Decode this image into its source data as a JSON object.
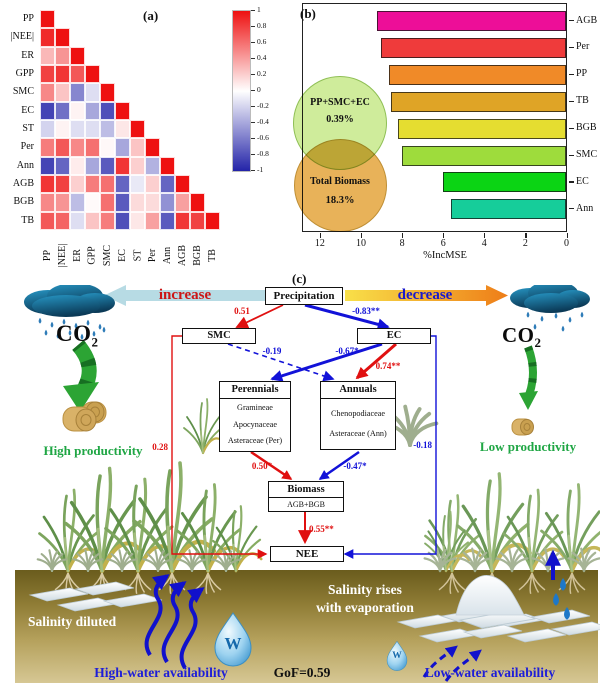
{
  "figure": {
    "panel_a_label": "(a)",
    "panel_b_label": "(b)",
    "panel_c_label": "(c)"
  },
  "chart_data": [
    {
      "type": "heatmap",
      "panel": "a",
      "title": "Correlation matrix (lower triangle)",
      "labels": [
        "PP",
        "|NEE|",
        "ER",
        "GPP",
        "SMC",
        "EC",
        "ST",
        "Per",
        "Ann",
        "AGB",
        "BGB",
        "TB"
      ],
      "triangle": "lower",
      "positive_color": "#ee1111",
      "negative_color": "#2323a8",
      "colorbar_ticks": [
        "1",
        "0.8",
        "0.6",
        "0.4",
        "0.2",
        "0",
        "-0.2",
        "-0.4",
        "-0.6",
        "-0.8",
        "-1"
      ],
      "values": [
        [
          1
        ],
        [
          0.9,
          1
        ],
        [
          0.3,
          0.45,
          1
        ],
        [
          0.8,
          0.85,
          0.7,
          1
        ],
        [
          0.5,
          0.25,
          -0.55,
          -0.15,
          1
        ],
        [
          -0.85,
          -0.65,
          0.05,
          -0.4,
          -0.8,
          1
        ],
        [
          -0.2,
          0.05,
          -0.15,
          -0.15,
          -0.3,
          0.1,
          1
        ],
        [
          0.55,
          0.7,
          0.5,
          0.6,
          0.03,
          -0.4,
          0.25,
          1
        ],
        [
          -0.85,
          -0.7,
          0.08,
          -0.4,
          -0.75,
          0.85,
          0.2,
          -0.35,
          1
        ],
        [
          0.85,
          0.8,
          0.2,
          0.55,
          0.6,
          -0.7,
          -0.1,
          0.2,
          -0.7,
          1
        ],
        [
          0.5,
          0.45,
          -0.3,
          0.02,
          0.6,
          -0.75,
          0.15,
          0.15,
          -0.5,
          0.4,
          1
        ],
        [
          0.7,
          0.65,
          -0.15,
          0.25,
          0.55,
          -0.8,
          0.1,
          0.4,
          -0.75,
          0.85,
          0.8,
          1
        ]
      ]
    },
    {
      "type": "bar",
      "panel": "b",
      "orientation": "horizontal",
      "x_axis": "reversed",
      "categories": [
        "AGB",
        "Per",
        "PP",
        "TB",
        "BGB",
        "SMC",
        "EC",
        "Ann"
      ],
      "values": [
        9.2,
        9.0,
        8.6,
        8.5,
        8.2,
        8.0,
        6.0,
        5.6
      ],
      "colors": [
        "#ed0e98",
        "#ef3b3b",
        "#f08a28",
        "#dfa426",
        "#e5dd30",
        "#9edc3c",
        "#0bd414",
        "#16cd9a"
      ],
      "xlabel": "%IncMSE",
      "x_ticks": [
        12,
        10,
        8,
        6,
        4,
        2,
        0
      ],
      "xlim": [
        0,
        12.9
      ],
      "inset_venn": {
        "top_label": "PP+SMC+EC",
        "top_value": "0.39%",
        "top_color": "#cfec9b",
        "bottom_label": "Total Biomass",
        "bottom_value": "18.3%",
        "bottom_color": "#e8b259"
      }
    }
  ],
  "diagram": {
    "increase": "increase",
    "decrease": "decrease",
    "co2": "CO",
    "co2_sub": "2",
    "boxes": {
      "precipitation": "Precipitation",
      "smc": "SMC",
      "ec": "EC",
      "perennials_title": "Perennials",
      "perennials_lines": [
        "Gramineae",
        "Apocynaceae",
        "Asteraceae (Per)"
      ],
      "annuals_title": "Annuals",
      "annuals_lines": [
        "Chenopodiaceae",
        "Asteraceae (Ann)"
      ],
      "biomass_title": "Biomass",
      "biomass_sub": "AGB+BGB",
      "nee": "NEE"
    },
    "coefficients": {
      "precip_smc": "0.51",
      "precip_ec": "-0.83**",
      "smc_annuals": "-0.19",
      "ec_perennials": "-0.67*",
      "ec_annuals": "0.74**",
      "smc_nee": "0.28",
      "ec_nee": "-0.18",
      "perennials_biomass": "0.50*",
      "annuals_biomass": "-0.47*",
      "biomass_nee": "0.55**"
    },
    "left_scene": {
      "productivity": "High productivity",
      "salinity": "Salinity diluted",
      "water": "High-water availability",
      "w": "W"
    },
    "right_scene": {
      "productivity": "Low productivity",
      "salinity_line1": "Salinity rises",
      "salinity_line2": "with evaporation",
      "water": "Low-water availability",
      "w": "W"
    },
    "gof": "GoF=0.59",
    "colors": {
      "path_positive": "#e01010",
      "path_negative": "#1212d8",
      "increase_arrow": "#b7dbe4",
      "decrease_arrow_start": "#f8e049",
      "decrease_arrow_end": "#ee7d18",
      "co2_arrow": "#2ca434",
      "water_arrow": "#1111cc",
      "soil_dark": "#6a5c1d",
      "soil_light": "#d6c794"
    }
  }
}
